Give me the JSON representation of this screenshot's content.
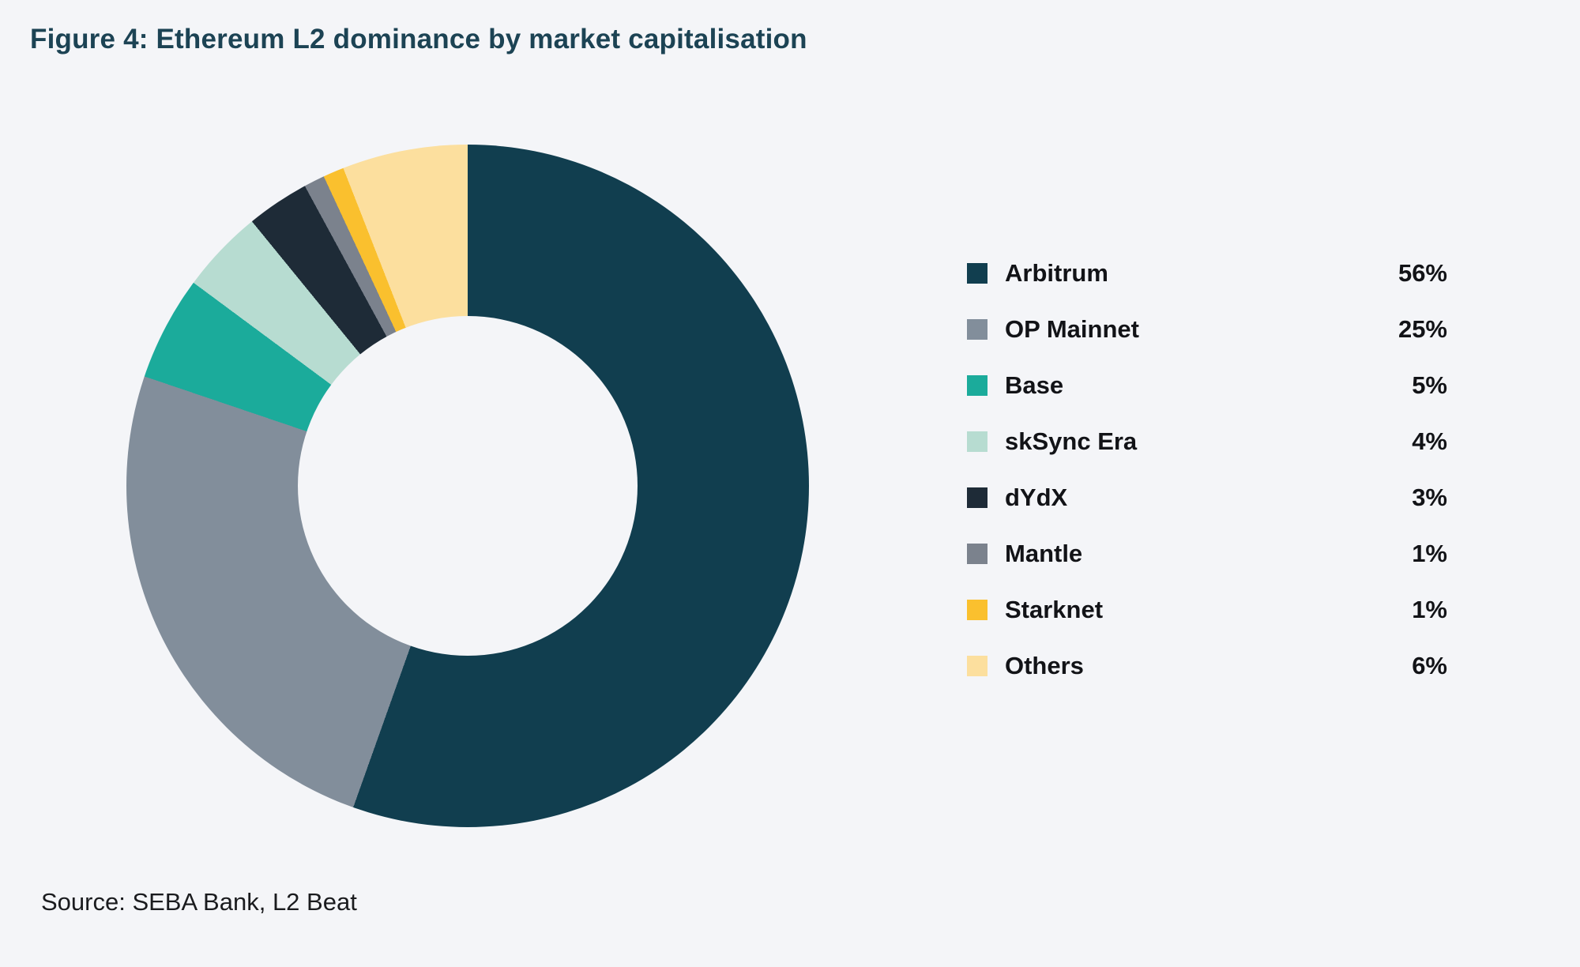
{
  "title": "Figure 4: Ethereum L2 dominance by market capitalisation",
  "source": "Source: SEBA Bank, L2 Beat",
  "colors": {
    "background": "#f4f5f8",
    "title_text": "#1c4354",
    "legend_text": "#121317",
    "source_text": "#1a1b1e"
  },
  "chart_data": {
    "type": "pie",
    "subtype": "donut",
    "title": "Figure 4: Ethereum L2 dominance by market capitalisation",
    "categories": [
      "Arbitrum",
      "OP Mainnet",
      "Base",
      "skSync Era",
      "dYdX",
      "Mantle",
      "Starknet",
      "Others"
    ],
    "values": [
      56,
      25,
      5,
      4,
      3,
      1,
      1,
      6
    ],
    "value_labels": [
      "56%",
      "25%",
      "5%",
      "4%",
      "3%",
      "1%",
      "1%",
      "6%"
    ],
    "slice_colors": [
      "#113e4f",
      "#828e9b",
      "#1bab9b",
      "#b7dcd1",
      "#1e2b37",
      "#7b828d",
      "#fac02e",
      "#fcdf9e"
    ],
    "start_angle_deg": 0,
    "direction": "clockwise",
    "inner_radius_ratio": 0.497,
    "legend_position": "right",
    "grid": false
  }
}
